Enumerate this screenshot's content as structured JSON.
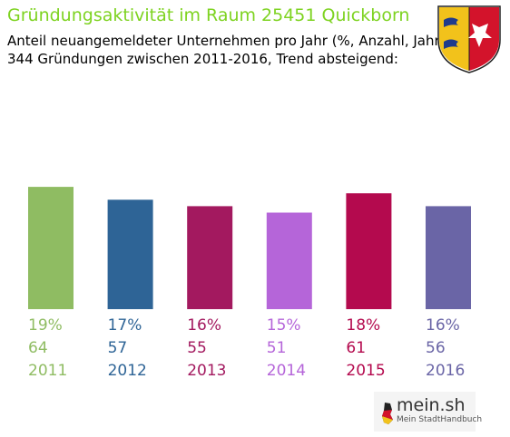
{
  "header": {
    "title": "Gründungsaktivität im Raum 25451 Quickborn",
    "subtitle_line1": "Anteil neuangemeldeter Unternehmen pro Jahr (%, Anzahl, Jahr)",
    "subtitle_line2": "344 Gründungen zwischen 2011-2016, Trend absteigend:"
  },
  "branding": {
    "logo_name": "mein.sh",
    "logo_tagline": "Mein StadtHandbuch",
    "crest_icon": "schleswig-holstein-crest-icon"
  },
  "colors": {
    "title": "#7ed321",
    "series": [
      "#8fbc62",
      "#2e6496",
      "#a3195f",
      "#b565d9",
      "#b40a4e",
      "#6a65a6"
    ]
  },
  "chart_data": {
    "type": "bar",
    "categories": [
      "2011",
      "2012",
      "2013",
      "2014",
      "2015",
      "2016"
    ],
    "values": [
      19,
      17,
      16,
      15,
      18,
      16
    ],
    "percent_labels": [
      "19%",
      "17%",
      "16%",
      "15%",
      "18%",
      "16%"
    ],
    "counts": [
      64,
      57,
      55,
      51,
      61,
      56
    ],
    "total": 344,
    "unit": "%",
    "ylim": [
      0,
      30
    ],
    "grid": false,
    "legend": "none"
  }
}
